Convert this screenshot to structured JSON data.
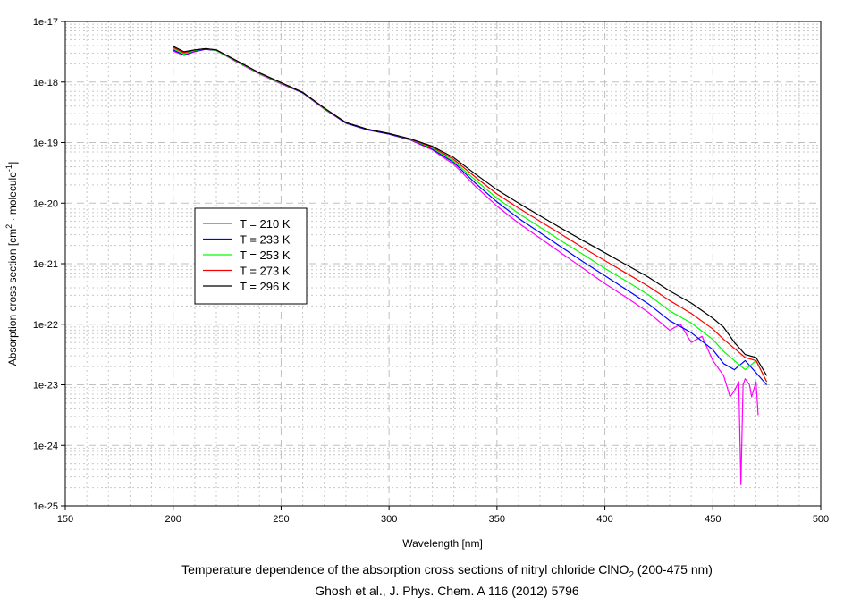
{
  "chart_data": {
    "type": "line",
    "title": "Temperature dependence of the absorption cross sections of nitryl chloride ClNO2 (200-475 nm)",
    "title_parts": {
      "main": "Temperature dependence of the absorption cross sections of nitryl chloride ClNO",
      "sub": "2",
      "tail": " (200-475 nm)"
    },
    "subtitle": "Ghosh et al., J. Phys. Chem. A 116 (2012) 5796",
    "xlabel": "Wavelength [nm]",
    "ylabel_parts": {
      "a": "Absorption cross section [cm",
      "sup1": "2",
      "b": " · molecule",
      "sup2": "-1",
      "c": "]"
    },
    "xlim": [
      150,
      500
    ],
    "ylim": [
      1e-25,
      1e-17
    ],
    "yscale": "log",
    "x_ticks": [
      "150",
      "200",
      "250",
      "300",
      "350",
      "400",
      "450",
      "500"
    ],
    "y_ticks": [
      "1e-17",
      "1e-18",
      "1e-19",
      "1e-20",
      "1e-21",
      "1e-22",
      "1e-23",
      "1e-24",
      "1e-25"
    ],
    "grid": true,
    "legend_position": "center-left",
    "series": [
      {
        "name": "T = 210 K",
        "color": "#ff00ff",
        "x": [
          200,
          205,
          210,
          215,
          220,
          230,
          240,
          250,
          260,
          270,
          280,
          290,
          300,
          310,
          320,
          330,
          340,
          350,
          360,
          370,
          380,
          390,
          400,
          410,
          420,
          430,
          435,
          440,
          445,
          450,
          455,
          458,
          460,
          462,
          463,
          464,
          465,
          467,
          468,
          470,
          471
        ],
        "log10_y": [
          -17.49,
          -17.56,
          -17.5,
          -17.46,
          -17.48,
          -17.68,
          -17.87,
          -18.03,
          -18.18,
          -18.45,
          -18.68,
          -18.79,
          -18.86,
          -18.96,
          -19.12,
          -19.36,
          -19.72,
          -20.05,
          -20.33,
          -20.58,
          -20.83,
          -21.08,
          -21.33,
          -21.56,
          -21.8,
          -22.1,
          -22.0,
          -22.3,
          -22.2,
          -22.6,
          -22.85,
          -23.2,
          -23.1,
          -22.95,
          -24.65,
          -23.0,
          -22.9,
          -23.0,
          -23.2,
          -22.95,
          -23.5
        ]
      },
      {
        "name": "T = 233 K",
        "color": "#0000ff",
        "x": [
          200,
          205,
          210,
          215,
          220,
          230,
          240,
          250,
          260,
          270,
          280,
          290,
          300,
          310,
          320,
          330,
          340,
          350,
          360,
          370,
          380,
          390,
          400,
          410,
          420,
          430,
          440,
          450,
          455,
          460,
          465,
          470,
          475
        ],
        "log10_y": [
          -17.47,
          -17.55,
          -17.49,
          -17.46,
          -17.48,
          -17.67,
          -17.86,
          -18.02,
          -18.18,
          -18.44,
          -18.68,
          -18.79,
          -18.86,
          -18.955,
          -19.105,
          -19.33,
          -19.67,
          -19.98,
          -20.25,
          -20.49,
          -20.73,
          -20.97,
          -21.2,
          -21.43,
          -21.66,
          -21.94,
          -22.14,
          -22.42,
          -22.65,
          -22.75,
          -22.6,
          -22.8,
          -23.0
        ]
      },
      {
        "name": "T = 253 K",
        "color": "#00ff00",
        "x": [
          200,
          205,
          210,
          215,
          220,
          230,
          240,
          250,
          260,
          270,
          280,
          290,
          300,
          310,
          320,
          330,
          340,
          350,
          360,
          370,
          380,
          390,
          400,
          410,
          420,
          430,
          440,
          450,
          455,
          460,
          465,
          470,
          475
        ],
        "log10_y": [
          -17.45,
          -17.54,
          -17.48,
          -17.45,
          -17.48,
          -17.67,
          -17.86,
          -18.02,
          -18.17,
          -18.44,
          -18.67,
          -18.78,
          -18.85,
          -18.95,
          -19.09,
          -19.31,
          -19.62,
          -19.92,
          -20.17,
          -20.4,
          -20.63,
          -20.85,
          -21.08,
          -21.29,
          -21.51,
          -21.78,
          -21.98,
          -22.25,
          -22.45,
          -22.6,
          -22.75,
          -22.6,
          -22.95
        ]
      },
      {
        "name": "T = 273 K",
        "color": "#ff0000",
        "x": [
          200,
          205,
          210,
          215,
          220,
          230,
          240,
          250,
          260,
          270,
          280,
          290,
          300,
          310,
          320,
          330,
          340,
          350,
          360,
          370,
          380,
          390,
          400,
          410,
          420,
          430,
          440,
          450,
          455,
          460,
          465,
          470,
          475
        ],
        "log10_y": [
          -17.43,
          -17.52,
          -17.47,
          -17.45,
          -17.47,
          -17.66,
          -17.85,
          -18.01,
          -18.17,
          -18.43,
          -18.67,
          -18.78,
          -18.85,
          -18.945,
          -19.075,
          -19.28,
          -19.57,
          -19.85,
          -20.08,
          -20.3,
          -20.52,
          -20.74,
          -20.95,
          -21.16,
          -21.37,
          -21.61,
          -21.82,
          -22.08,
          -22.25,
          -22.4,
          -22.55,
          -22.6,
          -22.95
        ]
      },
      {
        "name": "T = 296 K",
        "color": "#000000",
        "x": [
          200,
          205,
          210,
          215,
          220,
          230,
          240,
          250,
          260,
          270,
          280,
          290,
          300,
          310,
          320,
          330,
          340,
          350,
          360,
          370,
          380,
          390,
          400,
          410,
          420,
          430,
          440,
          450,
          455,
          460,
          465,
          470,
          475
        ],
        "log10_y": [
          -17.41,
          -17.5,
          -17.47,
          -17.45,
          -17.47,
          -17.66,
          -17.85,
          -18.01,
          -18.17,
          -18.43,
          -18.67,
          -18.78,
          -18.85,
          -18.94,
          -19.06,
          -19.25,
          -19.52,
          -19.78,
          -20.0,
          -20.21,
          -20.42,
          -20.62,
          -20.82,
          -21.02,
          -21.22,
          -21.45,
          -21.65,
          -21.9,
          -22.05,
          -22.3,
          -22.5,
          -22.55,
          -22.85
        ]
      }
    ]
  }
}
